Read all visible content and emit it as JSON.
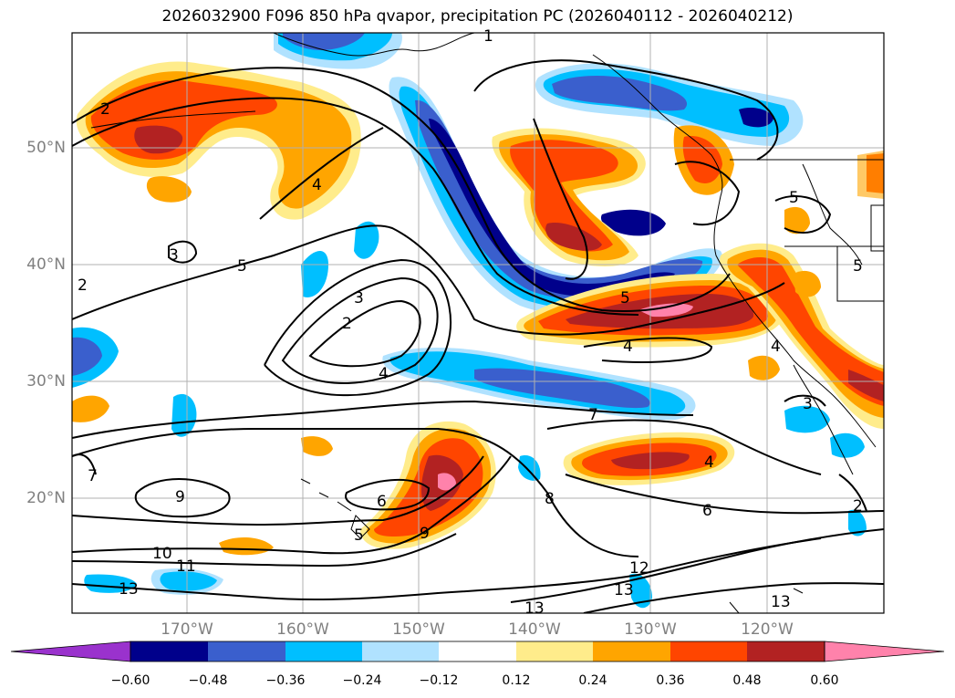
{
  "title": "2026032900 F096 850 hPa qvapor, precipitation PC (2026040112 - 2026040212)",
  "map": {
    "lat_labels": [
      "50°N",
      "40°N",
      "30°N",
      "20°N"
    ],
    "lon_labels": [
      "170°W",
      "160°W",
      "150°W",
      "140°W",
      "130°W",
      "120°W"
    ],
    "contour_labels": [
      "2",
      "2",
      "3",
      "5",
      "4",
      "3",
      "2",
      "4",
      "5",
      "4",
      "7",
      "8",
      "6",
      "4",
      "3",
      "9",
      "7",
      "10",
      "11",
      "13",
      "6",
      "5",
      "9",
      "13",
      "12",
      "13",
      "13",
      "2",
      "4",
      "5",
      "5",
      "1"
    ]
  },
  "colorbar": {
    "colors": [
      "#9a32cd",
      "#00008b",
      "#3a5fcd",
      "#00bfff",
      "#b0e2ff",
      "#ffffff",
      "#ffec8b",
      "#ffa500",
      "#ff4500",
      "#b22222",
      "#ff82ab"
    ],
    "labels": [
      "−0.60",
      "−0.48",
      "−0.36",
      "−0.24",
      "−0.12",
      "0.12",
      "0.24",
      "0.36",
      "0.48",
      "0.60"
    ]
  },
  "shading": {
    "neg1": "#b0e2ff",
    "neg2": "#00bfff",
    "neg3": "#3a5fcd",
    "neg4": "#00008b",
    "pos1": "#ffec8b",
    "pos2": "#ffa500",
    "pos3": "#ff4500",
    "pos4": "#b22222",
    "pos5": "#ff82ab"
  }
}
